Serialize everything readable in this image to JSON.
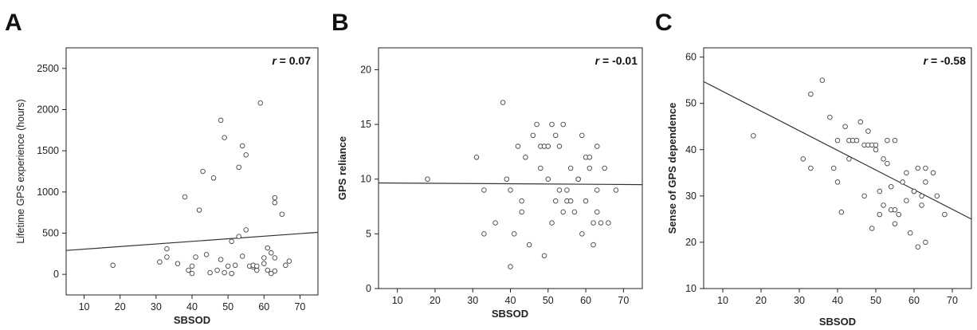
{
  "chart_data": [
    {
      "type": "scatter",
      "panel_label": "A",
      "xlabel": "SBSOD",
      "ylabel": "Lifetime GPS experience (hours)",
      "xlim": [
        5,
        75
      ],
      "ylim": [
        -250,
        2750
      ],
      "xticks": [
        10,
        20,
        30,
        40,
        50,
        60,
        70
      ],
      "yticks": [
        0,
        500,
        1000,
        1500,
        2000,
        2500
      ],
      "stat_symbol": "r",
      "stat_value": " = 0.07",
      "fit_line": {
        "x": [
          5,
          75
        ],
        "y": [
          290,
          510
        ]
      },
      "x": [
        18,
        31,
        33,
        33,
        36,
        38,
        39,
        40,
        40,
        41,
        42,
        43,
        44,
        45,
        46,
        47,
        48,
        48,
        49,
        49,
        50,
        51,
        51,
        51,
        52,
        53,
        53,
        54,
        54,
        55,
        55,
        56,
        57,
        57,
        58,
        58,
        59,
        60,
        60,
        61,
        61,
        62,
        62,
        63,
        63,
        63,
        63,
        65,
        66,
        67
      ],
      "y": [
        110,
        150,
        210,
        310,
        130,
        940,
        50,
        100,
        10,
        210,
        780,
        1250,
        240,
        20,
        1170,
        50,
        180,
        1870,
        20,
        1660,
        100,
        10,
        10,
        400,
        110,
        1300,
        460,
        1560,
        220,
        1450,
        540,
        100,
        90,
        110,
        50,
        100,
        2080,
        200,
        130,
        320,
        50,
        10,
        260,
        870,
        930,
        40,
        200,
        730,
        110,
        160
      ]
    },
    {
      "type": "scatter",
      "panel_label": "B",
      "xlabel": "SBSOD",
      "ylabel": "GPS reliance",
      "xlim": [
        5,
        75
      ],
      "ylim": [
        0,
        22
      ],
      "xticks": [
        10,
        20,
        30,
        40,
        50,
        60,
        70
      ],
      "yticks": [
        0,
        5,
        10,
        15,
        20
      ],
      "stat_symbol": "r",
      "stat_value": " = -0.01",
      "fit_line": {
        "x": [
          5,
          75
        ],
        "y": [
          9.65,
          9.5
        ]
      },
      "x": [
        18,
        31,
        33,
        33,
        36,
        38,
        39,
        40,
        40,
        41,
        42,
        43,
        43,
        44,
        45,
        46,
        47,
        48,
        48,
        49,
        49,
        50,
        50,
        51,
        51,
        52,
        52,
        53,
        53,
        54,
        54,
        55,
        55,
        56,
        56,
        57,
        58,
        58,
        59,
        59,
        60,
        60,
        61,
        61,
        62,
        62,
        63,
        63,
        63,
        64,
        65,
        66,
        68
      ],
      "y": [
        10,
        12,
        9,
        5,
        6,
        17,
        10,
        9,
        2,
        5,
        13,
        7,
        8,
        12,
        4,
        14,
        15,
        11,
        13,
        13,
        3,
        10,
        13,
        6,
        15,
        8,
        14,
        13,
        9,
        7,
        15,
        9,
        8,
        8,
        11,
        7,
        10,
        10,
        14,
        5,
        8,
        12,
        11,
        12,
        6,
        4,
        9,
        7,
        13,
        6,
        11,
        6,
        9
      ]
    },
    {
      "type": "scatter",
      "panel_label": "C",
      "xlabel": "SBSOD",
      "ylabel": "Sense of GPS dependence",
      "xlim": [
        5,
        75
      ],
      "ylim": [
        10,
        62
      ],
      "xticks": [
        10,
        20,
        30,
        40,
        50,
        60,
        70
      ],
      "yticks": [
        10,
        20,
        30,
        40,
        50,
        60
      ],
      "stat_symbol": "r",
      "stat_value": " = -0.58",
      "fit_line": {
        "x": [
          5,
          75
        ],
        "y": [
          54.7,
          25.0
        ]
      },
      "x": [
        18,
        31,
        33,
        33,
        36,
        38,
        39,
        40,
        40,
        41,
        42,
        43,
        43,
        44,
        45,
        46,
        47,
        47,
        48,
        48,
        49,
        49,
        50,
        50,
        51,
        51,
        52,
        52,
        53,
        53,
        54,
        54,
        55,
        55,
        55,
        56,
        57,
        58,
        58,
        59,
        60,
        60,
        61,
        61,
        62,
        62,
        63,
        63,
        63,
        65,
        66,
        68
      ],
      "y": [
        43,
        38,
        52,
        36,
        55,
        47,
        36,
        42,
        33,
        26.5,
        45,
        42,
        38,
        42,
        42,
        46,
        41,
        30,
        44,
        41,
        41,
        23,
        41,
        40,
        31,
        26,
        38,
        28,
        42,
        37,
        32,
        27,
        42,
        27,
        24,
        26,
        33,
        35,
        29,
        22,
        31,
        31,
        36,
        19,
        30,
        28,
        36,
        33,
        20,
        35,
        30,
        26
      ]
    }
  ]
}
